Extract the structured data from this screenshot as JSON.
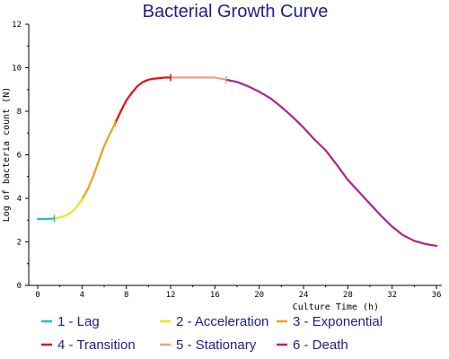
{
  "chart_data": {
    "type": "line",
    "title": "Bacterial Growth Curve",
    "xlabel": "Culture Time (h)",
    "ylabel": "Log of bacteria count (N)",
    "xlim": [
      0,
      36
    ],
    "ylim": [
      0,
      12
    ],
    "x_ticks": [
      0,
      4,
      8,
      12,
      16,
      20,
      24,
      28,
      32,
      36
    ],
    "y_ticks": [
      0,
      2,
      4,
      6,
      8,
      10,
      12
    ],
    "grid": false,
    "legend_position": "bottom",
    "series": [
      {
        "name": "1 - Lag",
        "color": "#20c0c0",
        "x": [
          0,
          0.5,
          1,
          1.5
        ],
        "y": [
          3.05,
          3.05,
          3.05,
          3.08
        ]
      },
      {
        "name": "2 - Acceleration",
        "color": "#e8e820",
        "x": [
          1.5,
          2,
          2.5,
          3,
          3.5,
          4
        ],
        "y": [
          3.08,
          3.12,
          3.2,
          3.35,
          3.6,
          3.95
        ]
      },
      {
        "name": "3 - Exponential",
        "color": "#f0a020",
        "x": [
          4,
          4.5,
          5,
          5.5,
          6,
          6.5,
          7
        ],
        "y": [
          3.95,
          4.4,
          5.0,
          5.7,
          6.4,
          6.95,
          7.45
        ]
      },
      {
        "name": "4 - Transition",
        "color": "#e01010",
        "x": [
          7,
          7.5,
          8,
          8.5,
          9,
          9.5,
          10,
          10.5,
          11,
          11.5,
          12
        ],
        "y": [
          7.45,
          8.0,
          8.5,
          8.85,
          9.15,
          9.35,
          9.45,
          9.5,
          9.52,
          9.55,
          9.55
        ]
      },
      {
        "name": "5 - Stationary",
        "color": "#f0a080",
        "x": [
          12,
          13,
          14,
          15,
          16,
          17
        ],
        "y": [
          9.55,
          9.55,
          9.55,
          9.55,
          9.55,
          9.45
        ]
      },
      {
        "name": "6 - Death",
        "color": "#b0208c",
        "x": [
          17,
          18,
          19,
          20,
          21,
          22,
          23,
          24,
          25,
          26,
          27,
          28,
          29,
          30,
          31,
          32,
          33,
          34,
          35,
          36
        ],
        "y": [
          9.45,
          9.35,
          9.15,
          8.9,
          8.6,
          8.2,
          7.75,
          7.25,
          6.7,
          6.2,
          5.55,
          4.85,
          4.3,
          3.75,
          3.2,
          2.7,
          2.3,
          2.05,
          1.9,
          1.82
        ]
      }
    ]
  }
}
